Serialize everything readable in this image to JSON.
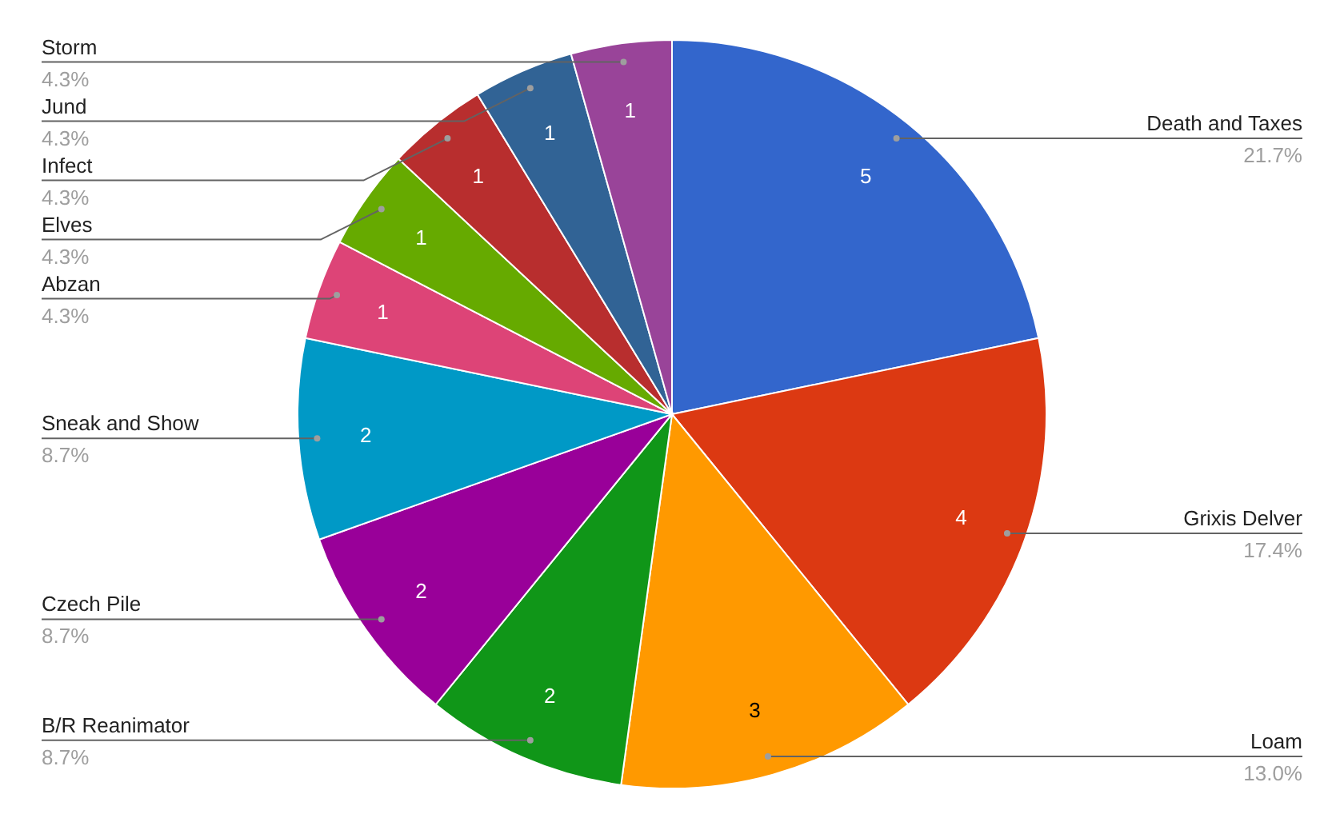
{
  "chart_data": {
    "type": "pie",
    "categories": [
      "Death and Taxes",
      "Grixis Delver",
      "Loam",
      "B/R Reanimator",
      "Czech Pile",
      "Sneak and Show",
      "Abzan",
      "Elves",
      "Infect",
      "Jund",
      "Storm"
    ],
    "values": [
      5,
      4,
      3,
      2,
      2,
      2,
      1,
      1,
      1,
      1,
      1
    ],
    "colors": [
      "#3366cc",
      "#dc3912",
      "#ff9900",
      "#109618",
      "#990099",
      "#0099c6",
      "#dd4477",
      "#66aa00",
      "#b82e2e",
      "#316395",
      "#994499"
    ],
    "data_labels": true,
    "annotations": [
      {
        "text": "21.7%",
        "x": "Death and Taxes"
      },
      {
        "text": "17.4%",
        "x": "Grixis Delver"
      },
      {
        "text": "13.0%",
        "x": "Loam"
      },
      {
        "text": "8.7%",
        "x": "B/R Reanimator"
      },
      {
        "text": "8.7%",
        "x": "Czech Pile"
      },
      {
        "text": "8.7%",
        "x": "Sneak and Show"
      },
      {
        "text": "4.3%",
        "x": "Abzan"
      },
      {
        "text": "4.3%",
        "x": "Elves"
      },
      {
        "text": "4.3%",
        "x": "Infect"
      },
      {
        "text": "4.3%",
        "x": "Jund"
      },
      {
        "text": "4.3%",
        "x": "Storm"
      }
    ]
  }
}
